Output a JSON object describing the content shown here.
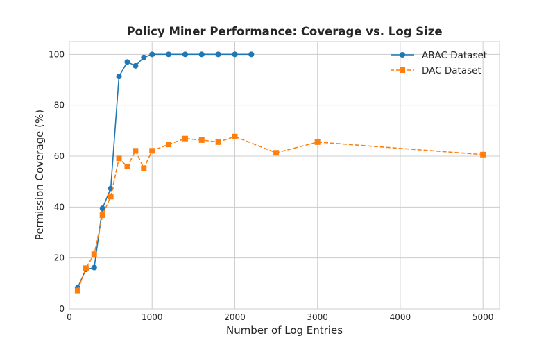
{
  "chart_data": {
    "type": "line",
    "title": "Policy Miner Performance: Coverage vs. Log Size",
    "xlabel": "Number of Log Entries",
    "ylabel": "Permission Coverage (%)",
    "xlim": [
      0,
      5200
    ],
    "ylim": [
      0,
      105
    ],
    "xticks": [
      0,
      1000,
      2000,
      3000,
      4000,
      5000
    ],
    "yticks": [
      0,
      20,
      40,
      60,
      80,
      100
    ],
    "grid": true,
    "legend_position": "top-right",
    "series": [
      {
        "name": "ABAC Dataset",
        "color": "#1f77b4",
        "marker": "circle",
        "line_style": "solid",
        "x": [
          100,
          200,
          300,
          400,
          500,
          600,
          700,
          800,
          900,
          1000,
          1200,
          1400,
          1600,
          1800,
          2000,
          2200
        ],
        "y": [
          8.3,
          15.5,
          16.2,
          39.5,
          47.3,
          91.3,
          97.0,
          95.5,
          98.8,
          100.0,
          100.0,
          100.0,
          100.0,
          100.0,
          100.0,
          100.0
        ]
      },
      {
        "name": "DAC Dataset",
        "color": "#ff7f0e",
        "marker": "square",
        "line_style": "dashed",
        "x": [
          100,
          200,
          300,
          400,
          500,
          600,
          700,
          800,
          900,
          1000,
          1200,
          1400,
          1600,
          1800,
          2000,
          2500,
          3000,
          5000
        ],
        "y": [
          7.2,
          16.0,
          21.5,
          36.8,
          44.1,
          59.1,
          55.9,
          62.1,
          55.2,
          62.1,
          64.6,
          66.9,
          66.3,
          65.5,
          67.7,
          61.3,
          65.5,
          60.6
        ]
      }
    ]
  }
}
